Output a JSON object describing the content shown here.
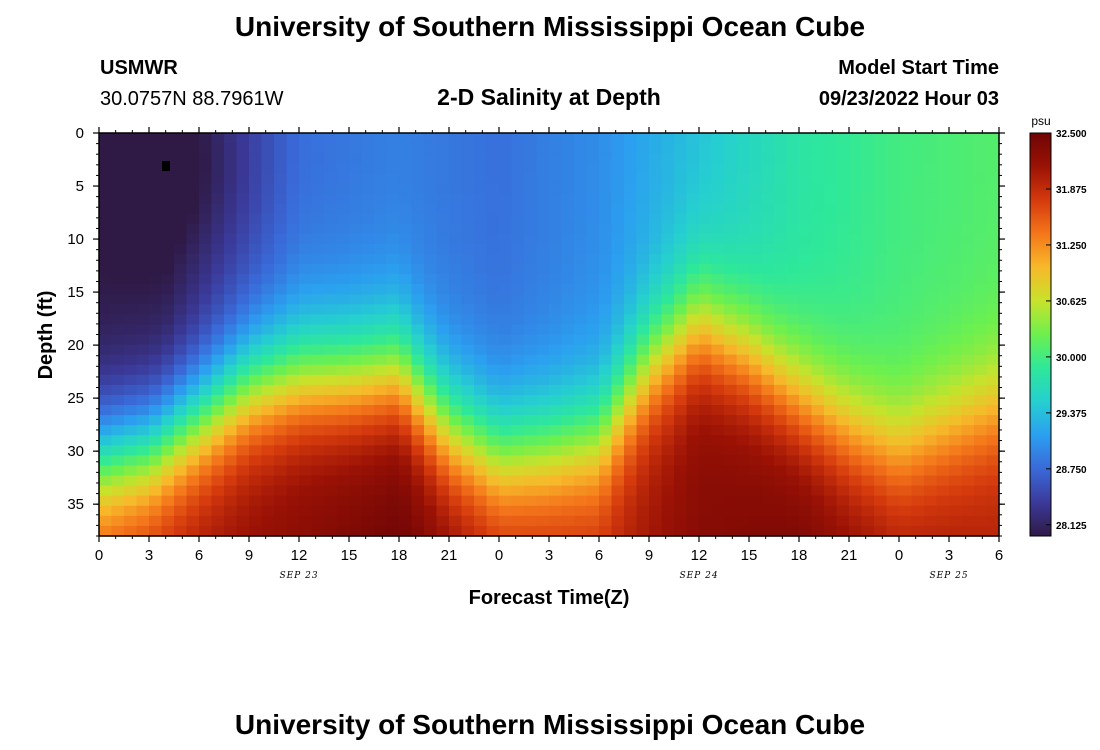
{
  "page": {
    "title": "University of Southern Mississippi Ocean Cube",
    "footer_title": "University of Southern Mississippi Ocean Cube",
    "station": "USMWR",
    "coords": "30.0757N  88.7961W",
    "center_title": "2-D Salinity at Depth",
    "start_label": "Model Start Time",
    "start_value": "09/23/2022 Hour 03"
  },
  "chart_data": {
    "type": "heatmap",
    "title": "2-D Salinity at Depth",
    "xlabel": "Forecast Time(Z)",
    "ylabel": "Depth (ft)",
    "x_ticks": [
      "0",
      "3",
      "6",
      "9",
      "12",
      "15",
      "18",
      "21",
      "0",
      "3",
      "6",
      "9",
      "12",
      "15",
      "18",
      "21",
      "0",
      "3",
      "6"
    ],
    "x_range_hours": [
      0,
      54
    ],
    "date_labels": [
      {
        "label": "SEP 23",
        "hour": 12
      },
      {
        "label": "SEP 24",
        "hour": 36
      },
      {
        "label": "SEP 25",
        "hour": 51
      }
    ],
    "y_ticks": [
      "0",
      "5",
      "10",
      "15",
      "20",
      "25",
      "30",
      "35"
    ],
    "y_range_ft": [
      0,
      38
    ],
    "y_inverted": true,
    "colorbar": {
      "unit": "psu",
      "min": 28.0,
      "max": 32.5,
      "labels": [
        "32.500",
        "31.875",
        "31.250",
        "30.625",
        "30.000",
        "29.375",
        "28.750",
        "28.125"
      ],
      "colors": [
        "#2f1a45",
        "#3b3a9a",
        "#3a69d8",
        "#2b9ff0",
        "#25cfd0",
        "#2ee89a",
        "#6df04e",
        "#c8e22b",
        "#f7b92a",
        "#f4761a",
        "#d53a0d",
        "#9b1205",
        "#6e0505"
      ]
    },
    "marker": {
      "hour": 4,
      "depth_ft": 3
    },
    "surface_salinity_psu": [
      {
        "hour": 0,
        "value": 28.0
      },
      {
        "hour": 4,
        "value": 28.0
      },
      {
        "hour": 8,
        "value": 28.4
      },
      {
        "hour": 12,
        "value": 28.8
      },
      {
        "hour": 18,
        "value": 28.9
      },
      {
        "hour": 24,
        "value": 28.8
      },
      {
        "hour": 30,
        "value": 29.0
      },
      {
        "hour": 36,
        "value": 29.4
      },
      {
        "hour": 42,
        "value": 29.8
      },
      {
        "hour": 48,
        "value": 30.0
      },
      {
        "hour": 54,
        "value": 30.1
      }
    ],
    "bottom_salinity_psu": [
      {
        "hour": 0,
        "value": 31.8
      },
      {
        "hour": 6,
        "value": 32.1
      },
      {
        "hour": 12,
        "value": 32.3
      },
      {
        "hour": 18,
        "value": 32.5
      },
      {
        "hour": 24,
        "value": 32.0
      },
      {
        "hour": 30,
        "value": 31.9
      },
      {
        "hour": 36,
        "value": 32.3
      },
      {
        "hour": 42,
        "value": 32.4
      },
      {
        "hour": 48,
        "value": 32.1
      },
      {
        "hour": 54,
        "value": 32.0
      }
    ],
    "halocline_depth_ft": [
      {
        "hour": 0,
        "value": 31
      },
      {
        "hour": 3,
        "value": 30
      },
      {
        "hour": 6,
        "value": 27
      },
      {
        "hour": 9,
        "value": 24
      },
      {
        "hour": 12,
        "value": 23
      },
      {
        "hour": 15,
        "value": 23
      },
      {
        "hour": 18,
        "value": 22.5
      },
      {
        "hour": 21,
        "value": 28
      },
      {
        "hour": 24,
        "value": 30.5
      },
      {
        "hour": 27,
        "value": 30
      },
      {
        "hour": 30,
        "value": 29
      },
      {
        "hour": 33,
        "value": 22
      },
      {
        "hour": 36,
        "value": 18
      },
      {
        "hour": 39,
        "value": 21
      },
      {
        "hour": 42,
        "value": 25
      },
      {
        "hour": 45,
        "value": 28
      },
      {
        "hour": 48,
        "value": 30
      },
      {
        "hour": 51,
        "value": 28
      },
      {
        "hour": 54,
        "value": 26
      }
    ]
  }
}
